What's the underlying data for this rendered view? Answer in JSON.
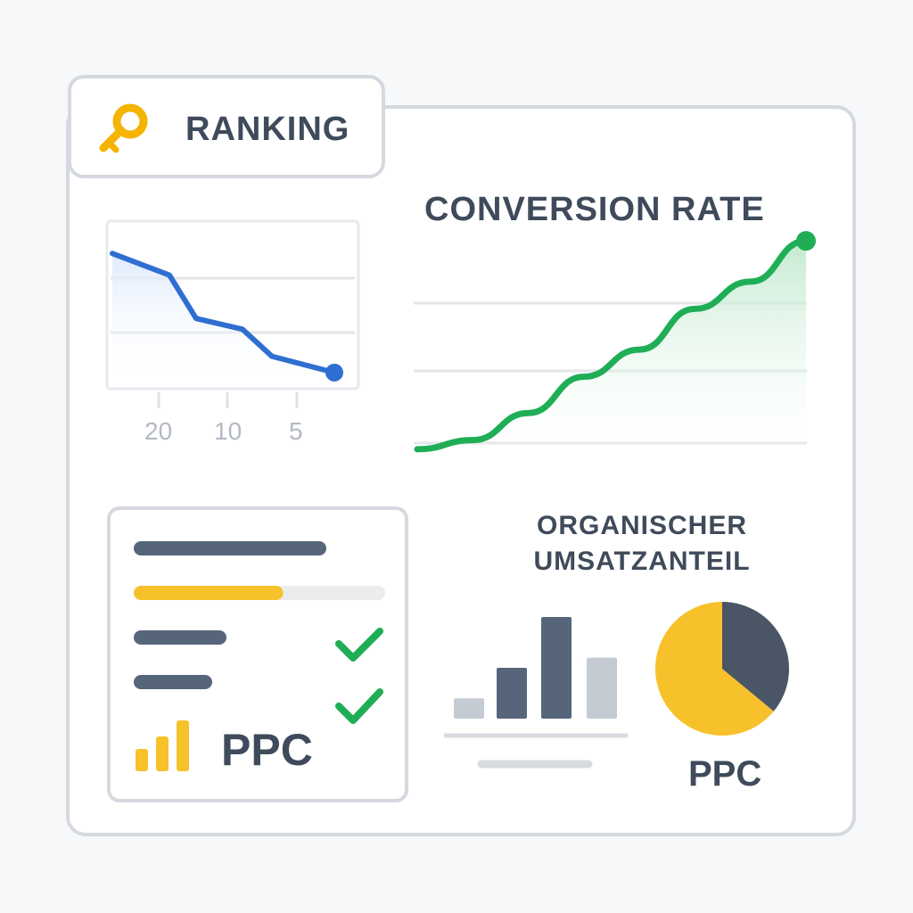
{
  "tab": {
    "label": "RANKING",
    "icon": "key-icon",
    "icon_color": "#f4b400"
  },
  "conversion": {
    "title": "CONVERSION RATE"
  },
  "organic": {
    "title_line1": "ORGANISCHER",
    "title_line2": "UMSATZANTEIL"
  },
  "ppc_panel": {
    "label": "PPC",
    "progress": 0.57,
    "checks": 2
  },
  "pie": {
    "label": "PPC"
  },
  "colors": {
    "blue": "#2f6fd1",
    "green": "#1fae55",
    "yellow": "#f7c12b",
    "slate": "#56657a",
    "dark": "#4a5565",
    "light_gray": "#c5cbd3"
  },
  "chart_data": [
    {
      "type": "line",
      "name_ref": "ranking-chart",
      "title": "",
      "x_ticks": [
        "20",
        "10",
        "5"
      ],
      "y": [
        10,
        8,
        4,
        3,
        0.5,
        -1
      ],
      "ylim": [
        -2,
        12
      ],
      "grid": true
    },
    {
      "type": "area",
      "title": "CONVERSION RATE",
      "y": [
        1,
        2,
        5,
        9,
        12,
        16.5,
        19.5,
        24
      ],
      "ylim": [
        0,
        25
      ],
      "grid": true
    },
    {
      "type": "bar",
      "title": "",
      "values": [
        2,
        5,
        10,
        6
      ],
      "ylim": [
        0,
        10
      ],
      "colors": [
        "#c5cbd3",
        "#56657a",
        "#56657a",
        "#c5cbd3"
      ]
    },
    {
      "type": "pie",
      "title": "",
      "slices": [
        {
          "value": 64,
          "color": "#f7c12b"
        },
        {
          "value": 36,
          "color": "#4a5565"
        }
      ]
    }
  ]
}
